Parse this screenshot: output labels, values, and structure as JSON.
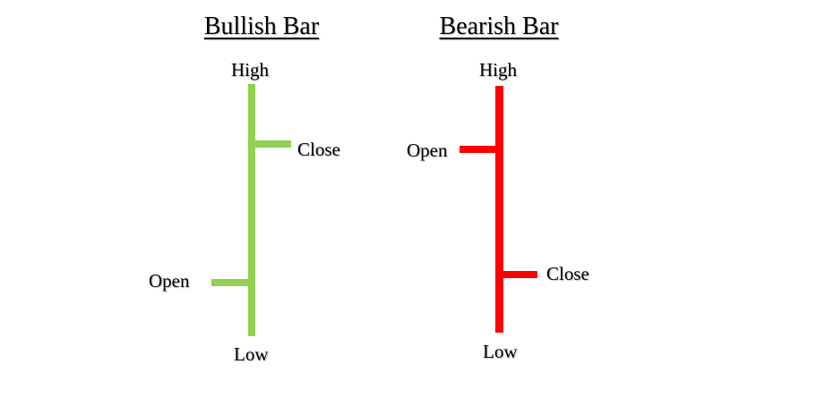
{
  "bullish": {
    "title": "Bullish Bar",
    "color": "#92d050",
    "labels": {
      "high": "High",
      "low": "Low",
      "open": "Open",
      "close": "Close"
    }
  },
  "bearish": {
    "title": "Bearish Bar",
    "color": "#ff0000",
    "labels": {
      "high": "High",
      "low": "Low",
      "open": "Open",
      "close": "Close"
    }
  }
}
